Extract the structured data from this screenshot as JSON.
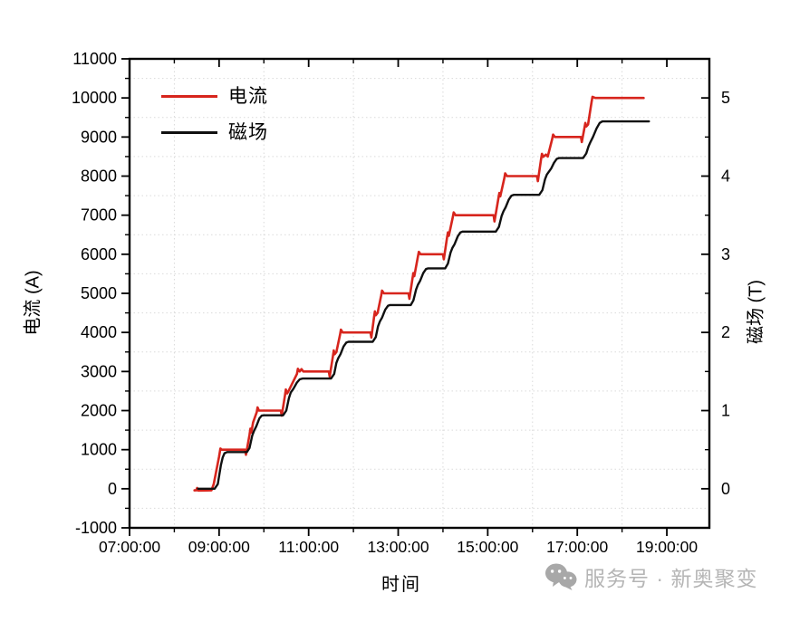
{
  "axes": {
    "x_title": "时间",
    "y_left_title": "电流 (A)",
    "y_right_title": "磁场 (T)"
  },
  "legend": {
    "items": [
      {
        "label": "电流",
        "color": "#d7251d"
      },
      {
        "label": "磁场",
        "color": "#101010"
      }
    ]
  },
  "watermark": {
    "icon": "wechat-icon",
    "text": "服务号 · 新奥聚变",
    "color": "#b5b5b5",
    "icon_color": "#a8a8a8"
  },
  "colors": {
    "frame": "#000000",
    "grid": "#dadada",
    "current_line": "#d7251d",
    "field_line": "#101010"
  },
  "chart_data": {
    "type": "line",
    "title": "",
    "xlabel": "时间",
    "ylabel_left": "电流 (A)",
    "ylabel_right": "磁场 (T)",
    "grid": "dotted-minor",
    "legend_position": "top-left-inside",
    "x_axis": {
      "min_hours": 7.0,
      "max_hours": 19.95,
      "major_hours": [
        7,
        9,
        11,
        13,
        15,
        17,
        19
      ],
      "major_labels": [
        "07:00:00",
        "09:00:00",
        "11:00:00",
        "13:00:00",
        "15:00:00",
        "17:00:00",
        "19:00:00"
      ],
      "minor_hours": [
        8,
        10,
        12,
        14,
        16,
        18
      ]
    },
    "y_left": {
      "min": -1000,
      "max": 11000,
      "major": [
        -1000,
        0,
        1000,
        2000,
        3000,
        4000,
        5000,
        6000,
        7000,
        8000,
        9000,
        10000,
        11000
      ],
      "major_labels": [
        "-1000",
        "0",
        "1000",
        "2000",
        "3000",
        "4000",
        "5000",
        "6000",
        "7000",
        "8000",
        "9000",
        "10000",
        "11000"
      ],
      "minor": [
        -500,
        500,
        1500,
        2500,
        3500,
        4500,
        5500,
        6500,
        7500,
        8500,
        9500,
        10500
      ]
    },
    "y_right": {
      "min": -0.5,
      "max": 5.5,
      "major": [
        0,
        1,
        2,
        3,
        4,
        5
      ],
      "major_labels": [
        "0",
        "1",
        "2",
        "3",
        "4",
        "5"
      ],
      "minor": [
        0.5,
        1.5,
        2.5,
        3.5,
        4.5
      ]
    },
    "series": [
      {
        "name": "电流",
        "axis": "left",
        "color": "#d7251d",
        "width": 2.6,
        "points": [
          [
            8.45,
            -40
          ],
          [
            8.49,
            -40
          ],
          [
            8.51,
            20
          ],
          [
            8.53,
            -45
          ],
          [
            8.6,
            -45
          ],
          [
            8.83,
            -40
          ],
          [
            8.88,
            120
          ],
          [
            9.0,
            820
          ],
          [
            9.03,
            1030
          ],
          [
            9.06,
            1000
          ],
          [
            9.58,
            1000
          ],
          [
            9.6,
            870
          ],
          [
            9.68,
            1380
          ],
          [
            9.7,
            1540
          ],
          [
            9.72,
            1440
          ],
          [
            9.76,
            1700
          ],
          [
            9.84,
            1960
          ],
          [
            9.86,
            2080
          ],
          [
            9.89,
            2000
          ],
          [
            10.38,
            2000
          ],
          [
            10.4,
            1870
          ],
          [
            10.47,
            2380
          ],
          [
            10.49,
            2540
          ],
          [
            10.52,
            2440
          ],
          [
            10.56,
            2520
          ],
          [
            10.74,
            2940
          ],
          [
            10.76,
            3070
          ],
          [
            10.8,
            3000
          ],
          [
            10.84,
            3060
          ],
          [
            10.88,
            3000
          ],
          [
            11.45,
            3000
          ],
          [
            11.47,
            2870
          ],
          [
            11.54,
            3380
          ],
          [
            11.56,
            3540
          ],
          [
            11.58,
            3440
          ],
          [
            11.62,
            3500
          ],
          [
            11.7,
            3940
          ],
          [
            11.72,
            4070
          ],
          [
            11.76,
            4000
          ],
          [
            12.38,
            4000
          ],
          [
            12.4,
            3870
          ],
          [
            12.46,
            4380
          ],
          [
            12.48,
            4540
          ],
          [
            12.5,
            4440
          ],
          [
            12.54,
            4500
          ],
          [
            12.62,
            4940
          ],
          [
            12.64,
            5070
          ],
          [
            12.68,
            5000
          ],
          [
            13.23,
            5000
          ],
          [
            13.25,
            4860
          ],
          [
            13.32,
            5380
          ],
          [
            13.34,
            5520
          ],
          [
            13.36,
            5440
          ],
          [
            13.44,
            5940
          ],
          [
            13.46,
            6060
          ],
          [
            13.5,
            6000
          ],
          [
            14.0,
            6000
          ],
          [
            14.02,
            5870
          ],
          [
            14.09,
            6420
          ],
          [
            14.11,
            6560
          ],
          [
            14.13,
            6470
          ],
          [
            14.22,
            6950
          ],
          [
            14.24,
            7070
          ],
          [
            14.28,
            7000
          ],
          [
            15.13,
            7000
          ],
          [
            15.15,
            6840
          ],
          [
            15.24,
            7440
          ],
          [
            15.26,
            7570
          ],
          [
            15.28,
            7480
          ],
          [
            15.37,
            7950
          ],
          [
            15.39,
            8070
          ],
          [
            15.43,
            8000
          ],
          [
            16.1,
            8000
          ],
          [
            16.12,
            7870
          ],
          [
            16.19,
            8430
          ],
          [
            16.21,
            8570
          ],
          [
            16.24,
            8490
          ],
          [
            16.3,
            8550
          ],
          [
            16.34,
            8500
          ],
          [
            16.44,
            8950
          ],
          [
            16.46,
            9060
          ],
          [
            16.5,
            9000
          ],
          [
            17.08,
            9000
          ],
          [
            17.1,
            8870
          ],
          [
            17.16,
            9230
          ],
          [
            17.18,
            9360
          ],
          [
            17.2,
            9270
          ],
          [
            17.24,
            9320
          ],
          [
            17.32,
            9900
          ],
          [
            17.34,
            10030
          ],
          [
            17.4,
            10000
          ],
          [
            18.48,
            10000
          ]
        ]
      },
      {
        "name": "磁场",
        "axis": "right",
        "color": "#101010",
        "width": 2.4,
        "points": [
          [
            8.53,
            0
          ],
          [
            8.9,
            0
          ],
          [
            8.97,
            0.06
          ],
          [
            9.04,
            0.3
          ],
          [
            9.08,
            0.4
          ],
          [
            9.12,
            0.455
          ],
          [
            9.18,
            0.47
          ],
          [
            9.62,
            0.47
          ],
          [
            9.68,
            0.52
          ],
          [
            9.74,
            0.68
          ],
          [
            9.78,
            0.74
          ],
          [
            9.83,
            0.8
          ],
          [
            9.9,
            0.9
          ],
          [
            9.95,
            0.935
          ],
          [
            10.0,
            0.94
          ],
          [
            10.43,
            0.94
          ],
          [
            10.5,
            1.0
          ],
          [
            10.56,
            1.16
          ],
          [
            10.6,
            1.23
          ],
          [
            10.66,
            1.28
          ],
          [
            10.74,
            1.36
          ],
          [
            10.8,
            1.4
          ],
          [
            10.86,
            1.41
          ],
          [
            11.5,
            1.41
          ],
          [
            11.57,
            1.47
          ],
          [
            11.62,
            1.61
          ],
          [
            11.66,
            1.67
          ],
          [
            11.71,
            1.72
          ],
          [
            11.78,
            1.82
          ],
          [
            11.84,
            1.87
          ],
          [
            11.89,
            1.88
          ],
          [
            12.43,
            1.88
          ],
          [
            12.5,
            1.94
          ],
          [
            12.55,
            2.08
          ],
          [
            12.59,
            2.14
          ],
          [
            12.64,
            2.19
          ],
          [
            12.71,
            2.29
          ],
          [
            12.77,
            2.34
          ],
          [
            12.82,
            2.35
          ],
          [
            13.28,
            2.35
          ],
          [
            13.34,
            2.41
          ],
          [
            13.4,
            2.55
          ],
          [
            13.44,
            2.61
          ],
          [
            13.49,
            2.66
          ],
          [
            13.56,
            2.76
          ],
          [
            13.62,
            2.81
          ],
          [
            13.67,
            2.82
          ],
          [
            14.05,
            2.82
          ],
          [
            14.11,
            2.88
          ],
          [
            14.17,
            3.02
          ],
          [
            14.21,
            3.08
          ],
          [
            14.26,
            3.13
          ],
          [
            14.33,
            3.23
          ],
          [
            14.39,
            3.28
          ],
          [
            14.44,
            3.29
          ],
          [
            15.18,
            3.29
          ],
          [
            15.25,
            3.35
          ],
          [
            15.31,
            3.49
          ],
          [
            15.35,
            3.55
          ],
          [
            15.4,
            3.6
          ],
          [
            15.47,
            3.7
          ],
          [
            15.53,
            3.75
          ],
          [
            15.58,
            3.76
          ],
          [
            16.15,
            3.76
          ],
          [
            16.22,
            3.82
          ],
          [
            16.28,
            3.96
          ],
          [
            16.32,
            4.02
          ],
          [
            16.37,
            4.06
          ],
          [
            16.42,
            4.1
          ],
          [
            16.48,
            4.17
          ],
          [
            16.54,
            4.22
          ],
          [
            16.59,
            4.23
          ],
          [
            17.13,
            4.23
          ],
          [
            17.2,
            4.29
          ],
          [
            17.25,
            4.38
          ],
          [
            17.29,
            4.43
          ],
          [
            17.35,
            4.5
          ],
          [
            17.43,
            4.61
          ],
          [
            17.5,
            4.68
          ],
          [
            17.56,
            4.7
          ],
          [
            18.6,
            4.7
          ]
        ]
      }
    ]
  }
}
